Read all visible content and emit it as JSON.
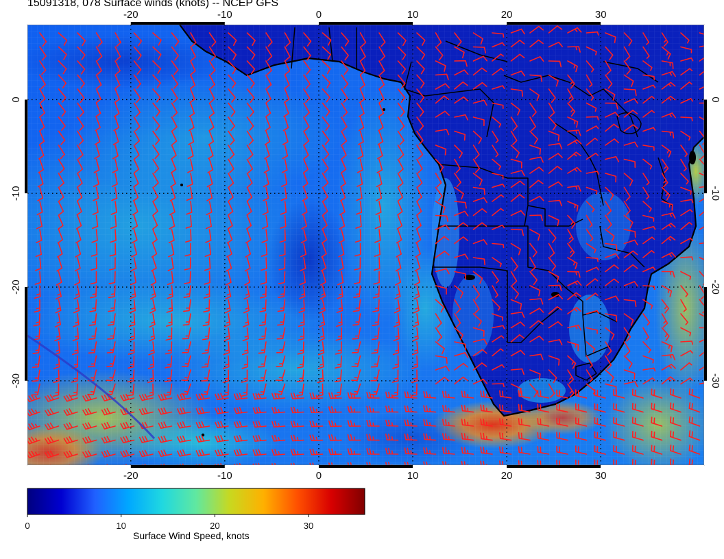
{
  "title": "15091318, 078 Surface winds (knots) -- NCEP GFS",
  "map": {
    "lon_range": [
      -31,
      41
    ],
    "lat_range": [
      -39,
      8
    ],
    "grid_lons": [
      -20,
      -10,
      0,
      10,
      20,
      30
    ],
    "grid_lats": [
      0,
      -10,
      -20,
      -30
    ],
    "top_lon_labels": [
      "-20",
      "-10",
      "0",
      "10",
      "20",
      "30"
    ],
    "bottom_lon_labels": [
      "-20",
      "-10",
      "0",
      "10",
      "20",
      "30"
    ],
    "left_lat_labels": [
      "0",
      "-10",
      "-20",
      "-30"
    ],
    "right_lat_labels": [
      "0",
      "-10",
      "-20",
      "-30"
    ],
    "barb_color": "#ff2020",
    "coast_color": "#000000"
  },
  "colorbar": {
    "title": "Surface Wind Speed, knots",
    "tick_labels": [
      "0",
      "10",
      "20",
      "30"
    ],
    "ticks": [
      0,
      10,
      20,
      30
    ],
    "range": [
      0,
      36
    ],
    "colors": [
      "#00007f",
      "#0000d0",
      "#2060ff",
      "#00a8ff",
      "#20d8e0",
      "#60e8a0",
      "#c8d820",
      "#ffb000",
      "#ff5000",
      "#d80000",
      "#800000"
    ]
  }
}
